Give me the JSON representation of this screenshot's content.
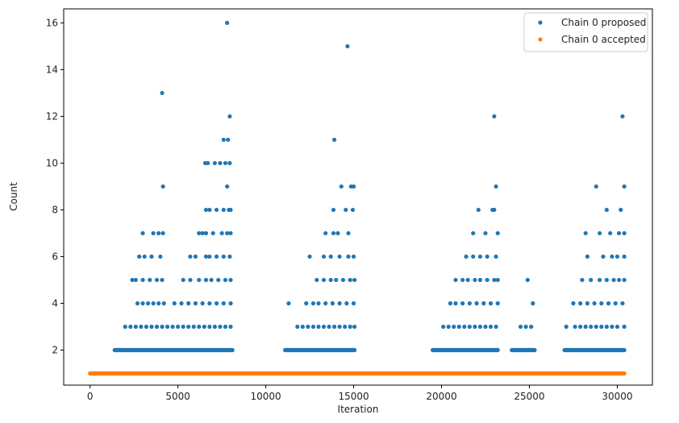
{
  "chart_data": {
    "type": "scatter",
    "title": "",
    "xlabel": "Iteration",
    "ylabel": "Count",
    "xlim": [
      -1500,
      32000
    ],
    "ylim": [
      0.5,
      16.6
    ],
    "xticks": [
      0,
      5000,
      10000,
      15000,
      20000,
      25000,
      30000
    ],
    "xtick_labels": [
      "0",
      "5000",
      "10000",
      "15000",
      "20000",
      "25000",
      "30000"
    ],
    "yticks": [
      2,
      4,
      6,
      8,
      10,
      12,
      14,
      16
    ],
    "ytick_labels": [
      "2",
      "4",
      "6",
      "8",
      "10",
      "12",
      "14",
      "16"
    ],
    "grid": false,
    "legend_position": "top-right",
    "series": [
      {
        "name": "Chain 0 proposed",
        "color": "#1f77b4",
        "points": [
          [
            4100,
            13
          ],
          [
            4150,
            9
          ],
          [
            7800,
            16
          ],
          [
            7600,
            11
          ],
          [
            7850,
            11
          ],
          [
            7950,
            12
          ],
          [
            7800,
            9
          ],
          [
            7950,
            10
          ],
          [
            7700,
            10
          ],
          [
            7400,
            10
          ],
          [
            7100,
            10
          ],
          [
            6700,
            10
          ],
          [
            6550,
            10
          ],
          [
            14650,
            15
          ],
          [
            13900,
            11
          ],
          [
            14300,
            9
          ],
          [
            15000,
            9
          ],
          [
            14850,
            9
          ],
          [
            23000,
            12
          ],
          [
            23100,
            9
          ],
          [
            30300,
            12
          ],
          [
            30400,
            9
          ],
          [
            28800,
            9
          ],
          [
            6600,
            8
          ],
          [
            6800,
            8
          ],
          [
            7200,
            8
          ],
          [
            7600,
            8
          ],
          [
            7900,
            8
          ],
          [
            8000,
            8
          ],
          [
            13850,
            8
          ],
          [
            14550,
            8
          ],
          [
            14950,
            8
          ],
          [
            22100,
            8
          ],
          [
            22900,
            8
          ],
          [
            23000,
            8
          ],
          [
            29400,
            8
          ],
          [
            30200,
            8
          ],
          [
            3000,
            7
          ],
          [
            3600,
            7
          ],
          [
            3900,
            7
          ],
          [
            4150,
            7
          ],
          [
            6200,
            7
          ],
          [
            6400,
            7
          ],
          [
            6600,
            7
          ],
          [
            7000,
            7
          ],
          [
            7500,
            7
          ],
          [
            7800,
            7
          ],
          [
            8000,
            7
          ],
          [
            13400,
            7
          ],
          [
            13850,
            7
          ],
          [
            14100,
            7
          ],
          [
            14700,
            7
          ],
          [
            21800,
            7
          ],
          [
            22500,
            7
          ],
          [
            23200,
            7
          ],
          [
            28200,
            7
          ],
          [
            29000,
            7
          ],
          [
            29600,
            7
          ],
          [
            30100,
            7
          ],
          [
            30400,
            7
          ],
          [
            2800,
            6
          ],
          [
            3100,
            6
          ],
          [
            3500,
            6
          ],
          [
            4000,
            6
          ],
          [
            5700,
            6
          ],
          [
            6000,
            6
          ],
          [
            6600,
            6
          ],
          [
            6800,
            6
          ],
          [
            7200,
            6
          ],
          [
            7600,
            6
          ],
          [
            7950,
            6
          ],
          [
            12500,
            6
          ],
          [
            13300,
            6
          ],
          [
            13700,
            6
          ],
          [
            14200,
            6
          ],
          [
            14700,
            6
          ],
          [
            15000,
            6
          ],
          [
            21400,
            6
          ],
          [
            21800,
            6
          ],
          [
            22200,
            6
          ],
          [
            22600,
            6
          ],
          [
            23100,
            6
          ],
          [
            28300,
            6
          ],
          [
            29200,
            6
          ],
          [
            29700,
            6
          ],
          [
            30000,
            6
          ],
          [
            30400,
            6
          ],
          [
            2400,
            5
          ],
          [
            2600,
            5
          ],
          [
            3000,
            5
          ],
          [
            3400,
            5
          ],
          [
            3800,
            5
          ],
          [
            4100,
            5
          ],
          [
            5300,
            5
          ],
          [
            5700,
            5
          ],
          [
            6200,
            5
          ],
          [
            6600,
            5
          ],
          [
            6900,
            5
          ],
          [
            7300,
            5
          ],
          [
            7700,
            5
          ],
          [
            8000,
            5
          ],
          [
            12900,
            5
          ],
          [
            13300,
            5
          ],
          [
            13700,
            5
          ],
          [
            14000,
            5
          ],
          [
            14400,
            5
          ],
          [
            14800,
            5
          ],
          [
            15050,
            5
          ],
          [
            20800,
            5
          ],
          [
            21200,
            5
          ],
          [
            21500,
            5
          ],
          [
            21900,
            5
          ],
          [
            22200,
            5
          ],
          [
            22600,
            5
          ],
          [
            23000,
            5
          ],
          [
            23200,
            5
          ],
          [
            24900,
            5
          ],
          [
            28000,
            5
          ],
          [
            28500,
            5
          ],
          [
            29000,
            5
          ],
          [
            29400,
            5
          ],
          [
            29800,
            5
          ],
          [
            30100,
            5
          ],
          [
            30400,
            5
          ],
          [
            2700,
            4
          ],
          [
            3000,
            4
          ],
          [
            3300,
            4
          ],
          [
            3600,
            4
          ],
          [
            3900,
            4
          ],
          [
            4200,
            4
          ],
          [
            4800,
            4
          ],
          [
            5200,
            4
          ],
          [
            5600,
            4
          ],
          [
            6000,
            4
          ],
          [
            6400,
            4
          ],
          [
            6800,
            4
          ],
          [
            7200,
            4
          ],
          [
            7600,
            4
          ],
          [
            8000,
            4
          ],
          [
            11300,
            4
          ],
          [
            12300,
            4
          ],
          [
            12700,
            4
          ],
          [
            13000,
            4
          ],
          [
            13400,
            4
          ],
          [
            13800,
            4
          ],
          [
            14200,
            4
          ],
          [
            14600,
            4
          ],
          [
            15000,
            4
          ],
          [
            20500,
            4
          ],
          [
            20800,
            4
          ],
          [
            21200,
            4
          ],
          [
            21600,
            4
          ],
          [
            22000,
            4
          ],
          [
            22400,
            4
          ],
          [
            22800,
            4
          ],
          [
            23200,
            4
          ],
          [
            25200,
            4
          ],
          [
            27500,
            4
          ],
          [
            27900,
            4
          ],
          [
            28300,
            4
          ],
          [
            28700,
            4
          ],
          [
            29100,
            4
          ],
          [
            29500,
            4
          ],
          [
            29900,
            4
          ],
          [
            30300,
            4
          ],
          [
            2000,
            3
          ],
          [
            2300,
            3
          ],
          [
            2600,
            3
          ],
          [
            2900,
            3
          ],
          [
            3200,
            3
          ],
          [
            3500,
            3
          ],
          [
            3800,
            3
          ],
          [
            4100,
            3
          ],
          [
            4400,
            3
          ],
          [
            4700,
            3
          ],
          [
            5000,
            3
          ],
          [
            5300,
            3
          ],
          [
            5600,
            3
          ],
          [
            5900,
            3
          ],
          [
            6200,
            3
          ],
          [
            6500,
            3
          ],
          [
            6800,
            3
          ],
          [
            7100,
            3
          ],
          [
            7400,
            3
          ],
          [
            7700,
            3
          ],
          [
            8000,
            3
          ],
          [
            11800,
            3
          ],
          [
            12100,
            3
          ],
          [
            12400,
            3
          ],
          [
            12700,
            3
          ],
          [
            13000,
            3
          ],
          [
            13300,
            3
          ],
          [
            13600,
            3
          ],
          [
            13900,
            3
          ],
          [
            14200,
            3
          ],
          [
            14500,
            3
          ],
          [
            14800,
            3
          ],
          [
            15050,
            3
          ],
          [
            20100,
            3
          ],
          [
            20400,
            3
          ],
          [
            20700,
            3
          ],
          [
            21000,
            3
          ],
          [
            21300,
            3
          ],
          [
            21600,
            3
          ],
          [
            21900,
            3
          ],
          [
            22200,
            3
          ],
          [
            22500,
            3
          ],
          [
            22800,
            3
          ],
          [
            23100,
            3
          ],
          [
            24500,
            3
          ],
          [
            24800,
            3
          ],
          [
            25100,
            3
          ],
          [
            27100,
            3
          ],
          [
            27600,
            3
          ],
          [
            27900,
            3
          ],
          [
            28200,
            3
          ],
          [
            28500,
            3
          ],
          [
            28800,
            3
          ],
          [
            29100,
            3
          ],
          [
            29400,
            3
          ],
          [
            29700,
            3
          ],
          [
            30000,
            3
          ],
          [
            30400,
            3
          ]
        ],
        "bands": [
          {
            "y": 2,
            "x": [
              1400,
              8100
            ]
          },
          {
            "y": 2,
            "x": [
              11100,
              15050
            ]
          },
          {
            "y": 2,
            "x": [
              19500,
              23200
            ]
          },
          {
            "y": 2,
            "x": [
              24000,
              25300
            ]
          },
          {
            "y": 2,
            "x": [
              27000,
              30400
            ]
          }
        ]
      },
      {
        "name": "Chain 0 accepted",
        "color": "#ff7f0e",
        "points": [],
        "bands": [
          {
            "y": 1,
            "x": [
              0,
              30400
            ]
          }
        ]
      }
    ]
  }
}
